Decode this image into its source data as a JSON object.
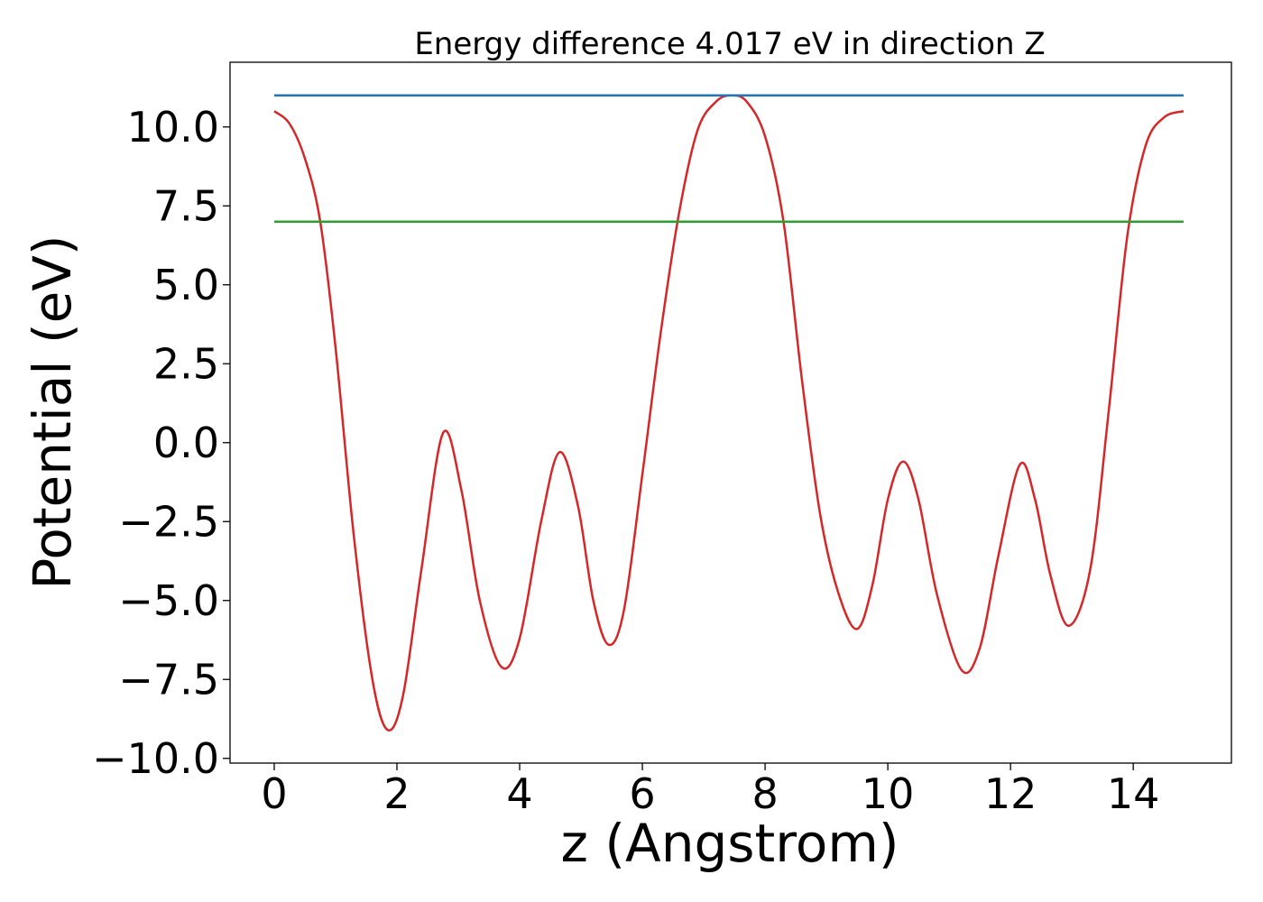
{
  "chart_data": {
    "type": "line",
    "title": "Energy difference 4.017 eV in direction Z",
    "xlabel": "z (Angstrom)",
    "ylabel": "Potential (eV)",
    "xlim": [
      -0.72,
      15.6
    ],
    "ylim": [
      -10.15,
      12.05
    ],
    "xticks": [
      0,
      2,
      4,
      6,
      8,
      10,
      12,
      14
    ],
    "xtick_labels": [
      "0",
      "2",
      "4",
      "6",
      "8",
      "10",
      "12",
      "14"
    ],
    "yticks": [
      -10.0,
      -7.5,
      -5.0,
      -2.5,
      0.0,
      2.5,
      5.0,
      7.5,
      10.0
    ],
    "ytick_labels": [
      "−10.0",
      "−7.5",
      "−5.0",
      "−2.5",
      "0.0",
      "2.5",
      "5.0",
      "7.5",
      "10.0"
    ],
    "grid": false,
    "series": [
      {
        "color": "#d62728",
        "x": [
          0.0,
          0.25,
          0.5,
          0.75,
          1.0,
          1.3,
          1.6,
          1.85,
          2.1,
          2.4,
          2.75,
          3.05,
          3.35,
          3.7,
          4.0,
          4.35,
          4.65,
          4.95,
          5.2,
          5.45,
          5.7,
          6.0,
          6.3,
          6.6,
          6.9,
          7.2,
          7.45,
          7.7,
          8.0,
          8.3,
          8.6,
          8.9,
          9.2,
          9.5,
          9.75,
          10.0,
          10.25,
          10.5,
          10.8,
          11.2,
          11.5,
          11.8,
          12.15,
          12.4,
          12.65,
          12.95,
          13.3,
          13.6,
          13.9,
          14.2,
          14.5,
          14.82
        ],
        "y": [
          10.5,
          10.1,
          9.0,
          7.0,
          3.0,
          -3.0,
          -7.5,
          -9.1,
          -8.0,
          -4.0,
          0.3,
          -1.5,
          -5.0,
          -7.1,
          -6.2,
          -2.5,
          -0.3,
          -2.0,
          -5.0,
          -6.4,
          -5.3,
          -1.0,
          3.5,
          7.3,
          9.9,
          10.8,
          11.0,
          10.8,
          9.7,
          7.0,
          2.0,
          -2.3,
          -4.8,
          -5.9,
          -4.5,
          -1.8,
          -0.6,
          -1.8,
          -4.8,
          -7.2,
          -6.5,
          -3.6,
          -0.7,
          -1.8,
          -4.2,
          -5.8,
          -4.0,
          1.0,
          6.5,
          9.4,
          10.3,
          10.5
        ]
      },
      {
        "color": "#1f77b4",
        "x": [
          0.0,
          14.82
        ],
        "y": [
          11.0,
          11.0
        ]
      },
      {
        "color": "#2ca02c",
        "x": [
          0.0,
          14.82
        ],
        "y": [
          7.0,
          7.0
        ]
      }
    ]
  }
}
